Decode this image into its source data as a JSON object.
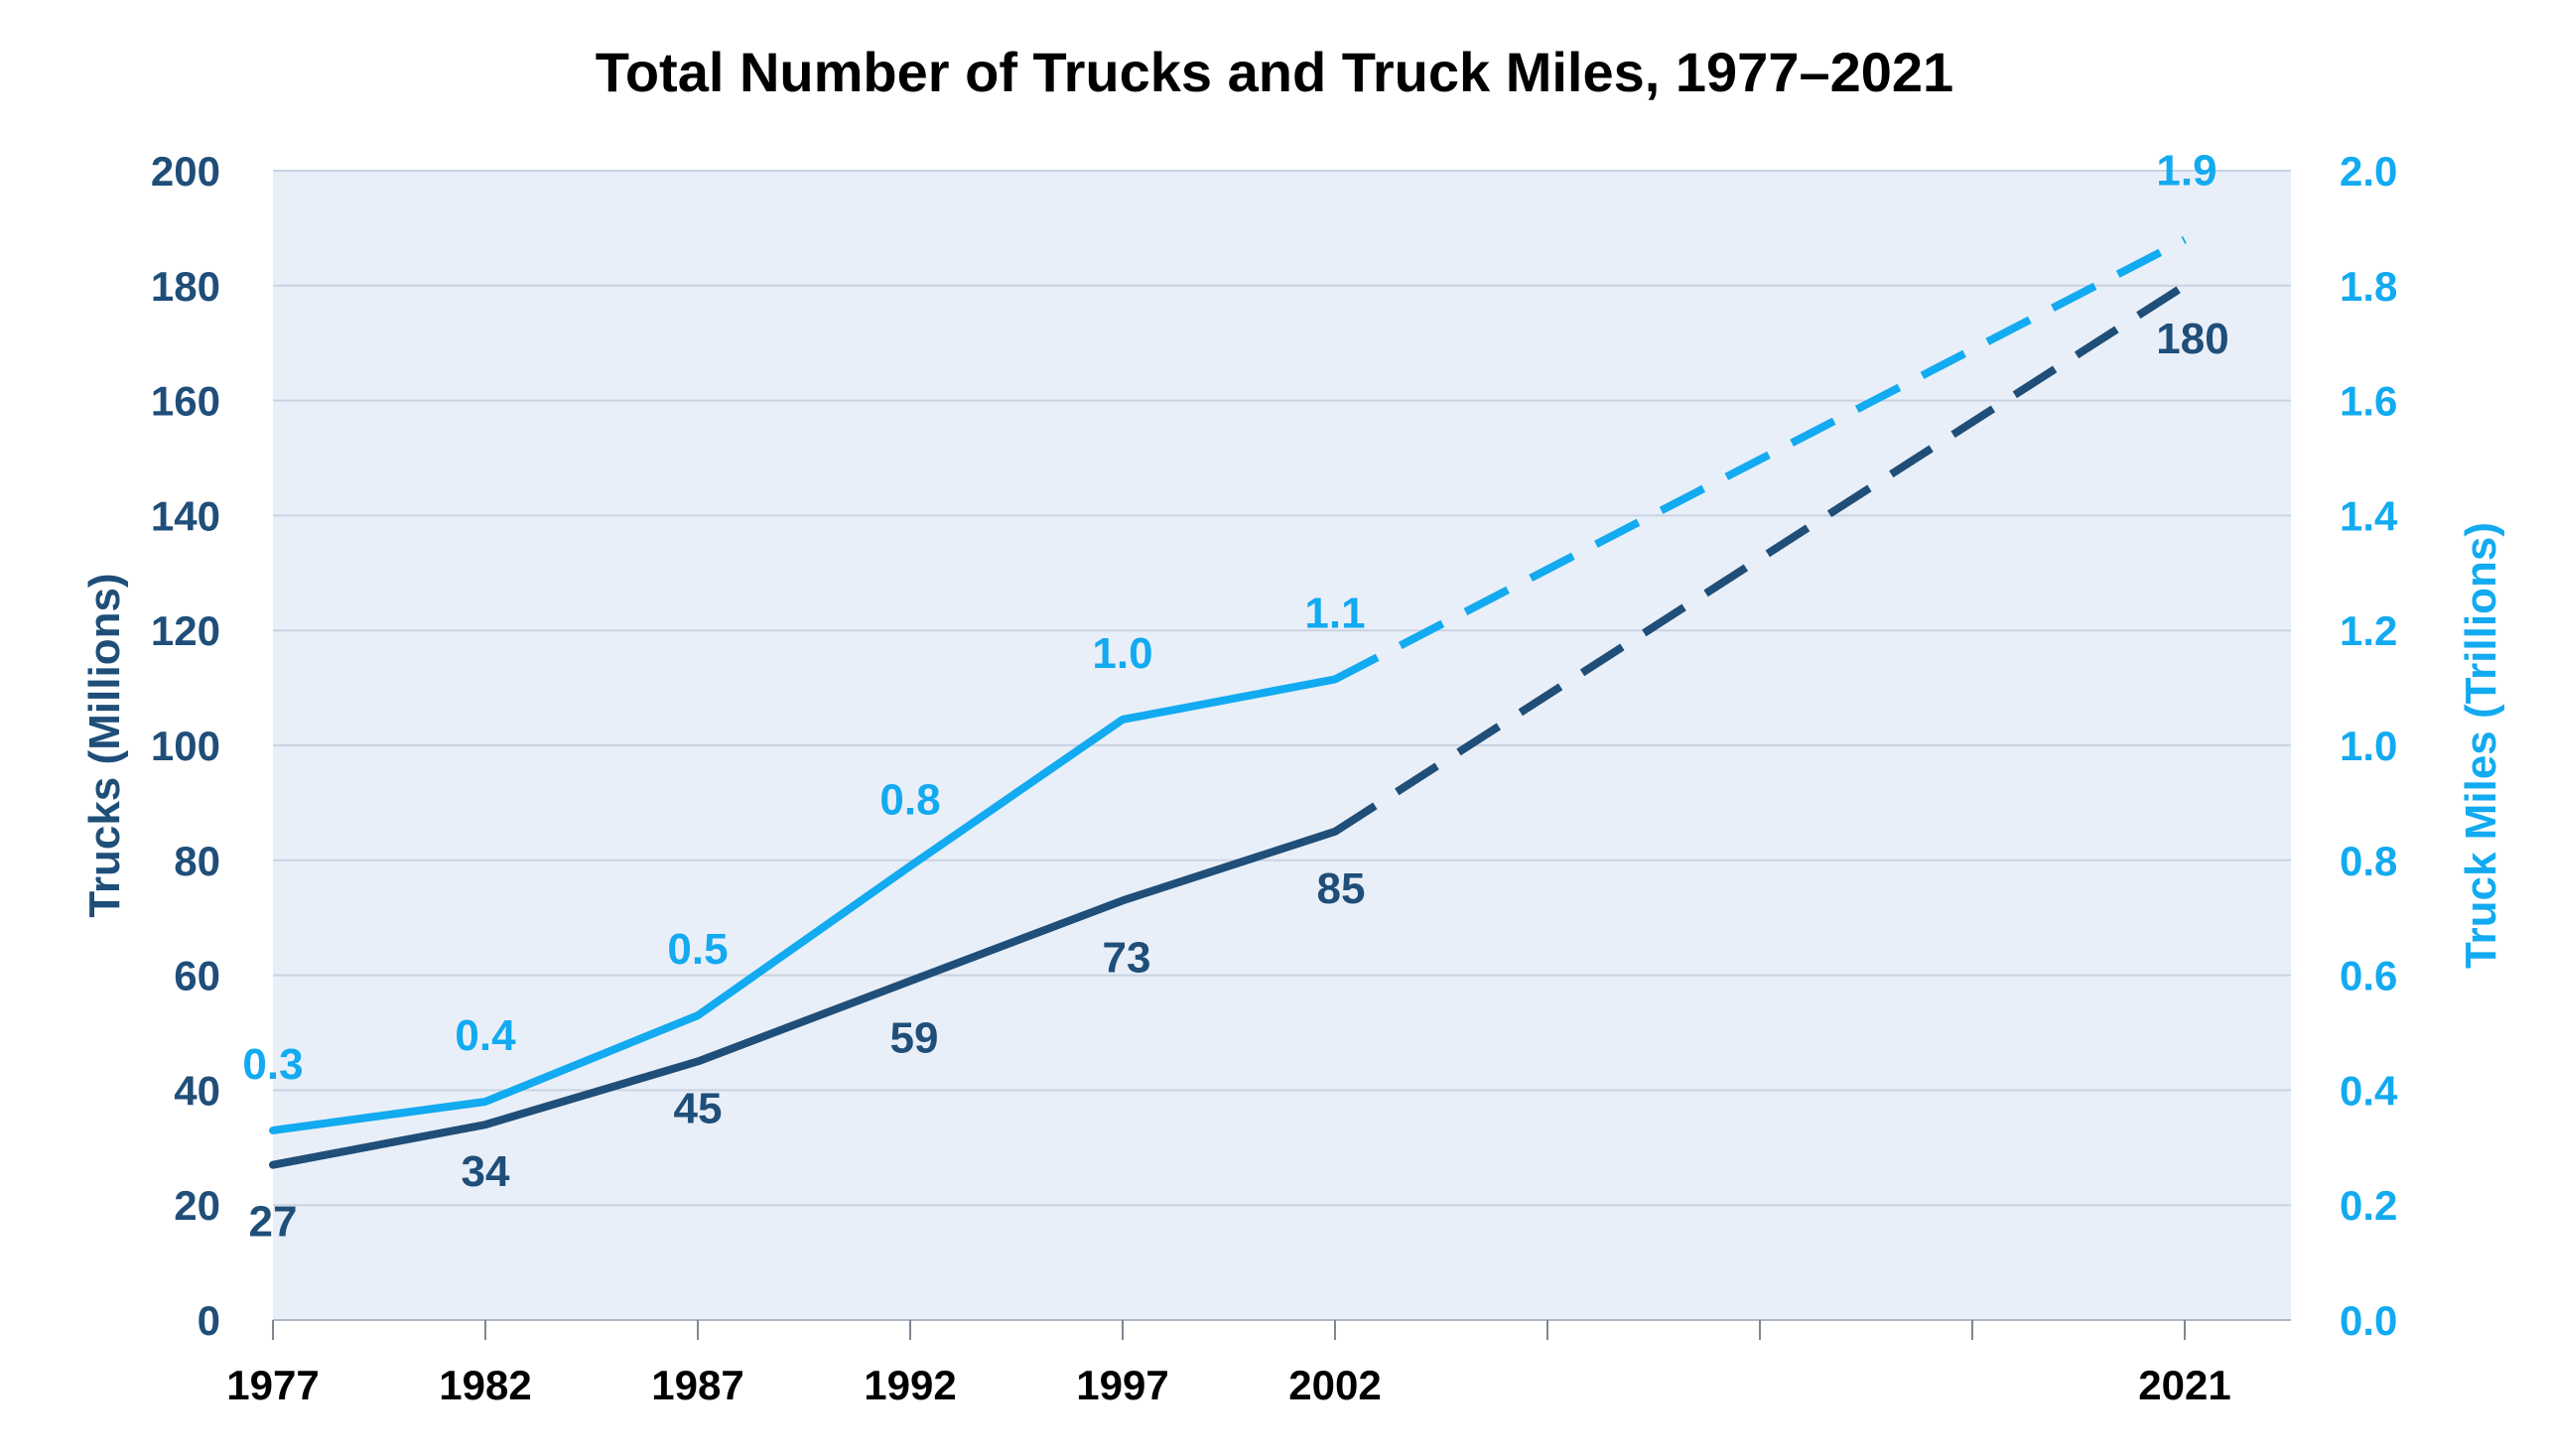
{
  "chart_data": {
    "type": "line",
    "title": "Total Number of Trucks and Truck Miles, 1977–2021",
    "x_tick_labels": [
      "1977",
      "1982",
      "1987",
      "1992",
      "1997",
      "2002",
      "",
      "",
      "",
      "2021"
    ],
    "y_left": {
      "label": "Trucks (Millions)",
      "lim": [
        0,
        200
      ],
      "ticks": [
        "0",
        "20",
        "40",
        "60",
        "80",
        "100",
        "120",
        "140",
        "160",
        "180",
        "200"
      ]
    },
    "y_right": {
      "label": "Truck Miles (Trillions)",
      "lim": [
        0,
        2.0
      ],
      "ticks": [
        "0.0",
        "0.2",
        "0.4",
        "0.6",
        "0.8",
        "1.0",
        "1.2",
        "1.4",
        "1.6",
        "1.8",
        "2.0"
      ]
    },
    "grid": true,
    "series": [
      {
        "axis": "left",
        "color": "#1F4E79",
        "solid": [
          {
            "x": 1977,
            "y": 27,
            "label": "27"
          },
          {
            "x": 1982,
            "y": 34,
            "label": "34"
          },
          {
            "x": 1987,
            "y": 45,
            "label": "45"
          },
          {
            "x": 1992,
            "y": 59,
            "label": "59"
          },
          {
            "x": 1997,
            "y": 73,
            "label": "73"
          },
          {
            "x": 2002,
            "y": 85,
            "label": "85"
          }
        ],
        "dashed": [
          {
            "x": 2002,
            "y": 85
          },
          {
            "x": 2021,
            "y": 180,
            "label": "180"
          }
        ]
      },
      {
        "axis": "right",
        "color": "#12AAF0",
        "solid": [
          {
            "x": 1977,
            "y": 0.33,
            "label": "0.3"
          },
          {
            "x": 1982,
            "y": 0.38,
            "label": "0.4"
          },
          {
            "x": 1987,
            "y": 0.53,
            "label": "0.5"
          },
          {
            "x": 1992,
            "y": 0.79,
            "label": "0.8"
          },
          {
            "x": 1997,
            "y": 1.045,
            "label": "1.0"
          },
          {
            "x": 2002,
            "y": 1.115,
            "label": "1.1"
          }
        ],
        "dashed": [
          {
            "x": 2002,
            "y": 1.115
          },
          {
            "x": 2021,
            "y": 1.88,
            "label": "1.9"
          }
        ]
      }
    ]
  },
  "colors": {
    "plot_background": "#E9EFF8",
    "grid": "#C9D3E1",
    "trucks": "#1F4E79",
    "miles": "#12AAF0",
    "title": "#000000"
  }
}
